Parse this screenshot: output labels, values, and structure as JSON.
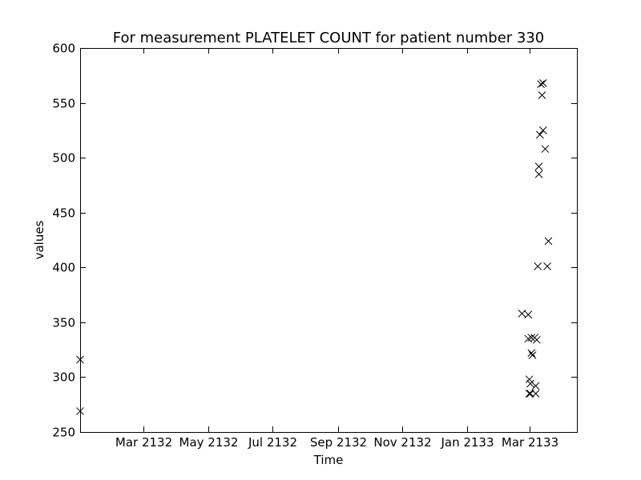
{
  "chart_data": {
    "type": "scatter",
    "title": "For measurement PLATELET COUNT for patient number 330",
    "xlabel": "Time",
    "ylabel": "values",
    "x_axis": {
      "scale": "date",
      "range": [
        "2132-01-01",
        "2133-04-15"
      ],
      "ticks": [
        {
          "value": "2132-03-01",
          "label": "Mar 2132"
        },
        {
          "value": "2132-05-01",
          "label": "May 2132"
        },
        {
          "value": "2132-07-01",
          "label": "Jul 2132"
        },
        {
          "value": "2132-09-01",
          "label": "Sep 2132"
        },
        {
          "value": "2132-11-01",
          "label": "Nov 2132"
        },
        {
          "value": "2133-01-01",
          "label": "Jan 2133"
        },
        {
          "value": "2133-03-01",
          "label": "Mar 2133"
        }
      ]
    },
    "y_axis": {
      "range": [
        250,
        600
      ],
      "ticks": [
        250,
        300,
        350,
        400,
        450,
        500,
        550,
        600
      ]
    },
    "grid": false,
    "marker": "x",
    "marker_color": "#000000",
    "points": [
      {
        "x": "2132-01-01",
        "y": 316
      },
      {
        "x": "2132-01-01",
        "y": 269
      },
      {
        "x": "2133-02-22",
        "y": 358
      },
      {
        "x": "2133-02-28",
        "y": 357
      },
      {
        "x": "2133-02-28",
        "y": 335
      },
      {
        "x": "2133-03-01",
        "y": 298
      },
      {
        "x": "2133-03-01",
        "y": 285
      },
      {
        "x": "2133-03-02",
        "y": 285
      },
      {
        "x": "2133-03-02",
        "y": 294
      },
      {
        "x": "2133-03-03",
        "y": 336
      },
      {
        "x": "2133-03-03",
        "y": 322
      },
      {
        "x": "2133-03-04",
        "y": 320
      },
      {
        "x": "2133-03-06",
        "y": 336
      },
      {
        "x": "2133-03-07",
        "y": 292
      },
      {
        "x": "2133-03-07",
        "y": 285
      },
      {
        "x": "2133-03-08",
        "y": 334
      },
      {
        "x": "2133-03-09",
        "y": 401
      },
      {
        "x": "2133-03-10",
        "y": 485
      },
      {
        "x": "2133-03-10",
        "y": 492
      },
      {
        "x": "2133-03-11",
        "y": 521
      },
      {
        "x": "2133-03-12",
        "y": 567
      },
      {
        "x": "2133-03-13",
        "y": 557
      },
      {
        "x": "2133-03-14",
        "y": 525
      },
      {
        "x": "2133-03-14",
        "y": 568
      },
      {
        "x": "2133-03-16",
        "y": 508
      },
      {
        "x": "2133-03-18",
        "y": 401
      },
      {
        "x": "2133-03-19",
        "y": 424
      }
    ]
  }
}
